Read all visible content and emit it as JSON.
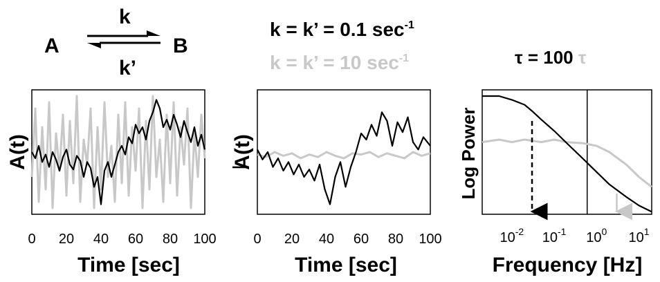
{
  "scheme": {
    "species_a": "A",
    "species_b": "B",
    "forward_rate": "k",
    "reverse_rate": "k’"
  },
  "rates": {
    "slow_label": "k = k’ = 0.1 sec",
    "slow_exp": "-1",
    "fast_label": "k = k’ = 10 sec",
    "fast_exp": "-1"
  },
  "tau": {
    "symbol": "τ",
    "text": " = 100 ",
    "symbol2": "τ"
  },
  "colors": {
    "slow": "#000000",
    "fast": "#c8c8c8"
  },
  "chart_data": [
    {
      "type": "line",
      "xlabel": "Time [sec]",
      "ylabel": "A(t)",
      "xlim": [
        0,
        100
      ],
      "x_ticks": [
        "0",
        "20",
        "40",
        "60",
        "80",
        "100"
      ],
      "series": [
        {
          "color": "fast",
          "x": [
            0,
            2,
            4,
            6,
            8,
            10,
            12,
            14,
            16,
            18,
            20,
            22,
            24,
            26,
            28,
            30,
            32,
            34,
            36,
            38,
            40,
            42,
            44,
            46,
            48,
            50,
            52,
            54,
            56,
            58,
            60,
            62,
            64,
            66,
            68,
            70,
            72,
            74,
            76,
            78,
            80,
            82,
            84,
            86,
            88,
            90,
            92,
            94,
            96,
            98,
            100
          ],
          "y": [
            0.3,
            0.85,
            0.1,
            0.7,
            0.2,
            0.9,
            0.05,
            0.65,
            0.35,
            0.8,
            0.15,
            0.75,
            0.25,
            0.95,
            0.1,
            0.6,
            0.4,
            0.85,
            0.05,
            0.7,
            0.2,
            0.9,
            0.3,
            0.55,
            0.1,
            0.8,
            0.25,
            0.9,
            0.15,
            0.7,
            0.35,
            0.85,
            0.05,
            0.75,
            0.2,
            0.95,
            0.3,
            0.6,
            0.1,
            0.8,
            0.25,
            0.9,
            0.15,
            0.7,
            0.4,
            0.85,
            0.05,
            0.65,
            0.3,
            0.8,
            0.45
          ]
        },
        {
          "color": "slow",
          "x": [
            0,
            2,
            4,
            6,
            8,
            10,
            12,
            14,
            16,
            18,
            20,
            22,
            24,
            26,
            28,
            30,
            32,
            34,
            36,
            38,
            40,
            42,
            44,
            46,
            48,
            50,
            52,
            54,
            56,
            58,
            60,
            62,
            64,
            66,
            68,
            70,
            72,
            74,
            76,
            78,
            80,
            82,
            84,
            86,
            88,
            90,
            92,
            94,
            96,
            98,
            100
          ],
          "y": [
            0.5,
            0.45,
            0.55,
            0.42,
            0.48,
            0.38,
            0.5,
            0.44,
            0.35,
            0.46,
            0.52,
            0.4,
            0.36,
            0.47,
            0.43,
            0.3,
            0.42,
            0.37,
            0.22,
            0.3,
            0.08,
            0.35,
            0.42,
            0.3,
            0.4,
            0.5,
            0.55,
            0.48,
            0.62,
            0.57,
            0.72,
            0.65,
            0.7,
            0.6,
            0.75,
            0.82,
            0.92,
            0.85,
            0.7,
            0.76,
            0.68,
            0.8,
            0.72,
            0.62,
            0.75,
            0.66,
            0.58,
            0.7,
            0.55,
            0.64,
            0.52
          ]
        }
      ]
    },
    {
      "type": "line",
      "xlabel": "Time [sec]",
      "ylabel": "A(t)",
      "xlim": [
        0,
        100
      ],
      "x_ticks": [
        "0",
        "20",
        "40",
        "60",
        "80",
        "100"
      ],
      "series": [
        {
          "color": "fast",
          "x": [
            0,
            5,
            10,
            15,
            20,
            25,
            30,
            35,
            40,
            45,
            50,
            55,
            60,
            65,
            70,
            75,
            80,
            85,
            90,
            95,
            100
          ],
          "y": [
            0.48,
            0.46,
            0.5,
            0.47,
            0.49,
            0.45,
            0.48,
            0.46,
            0.5,
            0.47,
            0.45,
            0.49,
            0.48,
            0.5,
            0.46,
            0.49,
            0.47,
            0.45,
            0.5,
            0.47,
            0.49
          ]
        },
        {
          "color": "slow",
          "x": [
            0,
            3,
            6,
            9,
            12,
            15,
            18,
            21,
            24,
            27,
            30,
            33,
            36,
            39,
            42,
            45,
            48,
            51,
            54,
            57,
            60,
            63,
            66,
            69,
            72,
            75,
            78,
            81,
            84,
            87,
            90,
            93,
            96,
            100
          ],
          "y": [
            0.52,
            0.44,
            0.5,
            0.38,
            0.45,
            0.35,
            0.42,
            0.32,
            0.4,
            0.3,
            0.36,
            0.27,
            0.4,
            0.2,
            0.08,
            0.3,
            0.42,
            0.22,
            0.38,
            0.5,
            0.65,
            0.6,
            0.72,
            0.63,
            0.82,
            0.75,
            0.55,
            0.74,
            0.66,
            0.78,
            0.58,
            0.52,
            0.62,
            0.55
          ]
        }
      ]
    },
    {
      "type": "line",
      "xlabel": "Frequency [Hz]",
      "ylabel": "Log Power",
      "x_scale": "log",
      "xlim": [
        0.002,
        20
      ],
      "x_ticks": [
        "10",
        "10",
        "10",
        "10"
      ],
      "x_tick_exps": [
        "-2",
        "-1",
        "0",
        "1"
      ],
      "x_tick_values": [
        0.01,
        0.1,
        1,
        10
      ],
      "corner_frequency": 0.6,
      "arrows": [
        {
          "color": "slow",
          "style": "dashed",
          "x": 0.03
        },
        {
          "color": "fast",
          "style": "solid",
          "x": 3
        }
      ],
      "series": [
        {
          "color": "fast",
          "x": [
            0.002,
            0.005,
            0.01,
            0.02,
            0.05,
            0.1,
            0.2,
            0.5,
            1,
            2,
            5,
            10,
            20
          ],
          "y": [
            0.58,
            0.6,
            0.58,
            0.6,
            0.58,
            0.6,
            0.58,
            0.57,
            0.55,
            0.5,
            0.4,
            0.3,
            0.22
          ]
        },
        {
          "color": "slow",
          "x": [
            0.002,
            0.005,
            0.01,
            0.02,
            0.03,
            0.05,
            0.1,
            0.2,
            0.5,
            1,
            2,
            5,
            10,
            20
          ],
          "y": [
            0.95,
            0.95,
            0.92,
            0.88,
            0.83,
            0.76,
            0.67,
            0.57,
            0.44,
            0.34,
            0.24,
            0.14,
            0.07,
            0.02
          ]
        }
      ]
    }
  ]
}
